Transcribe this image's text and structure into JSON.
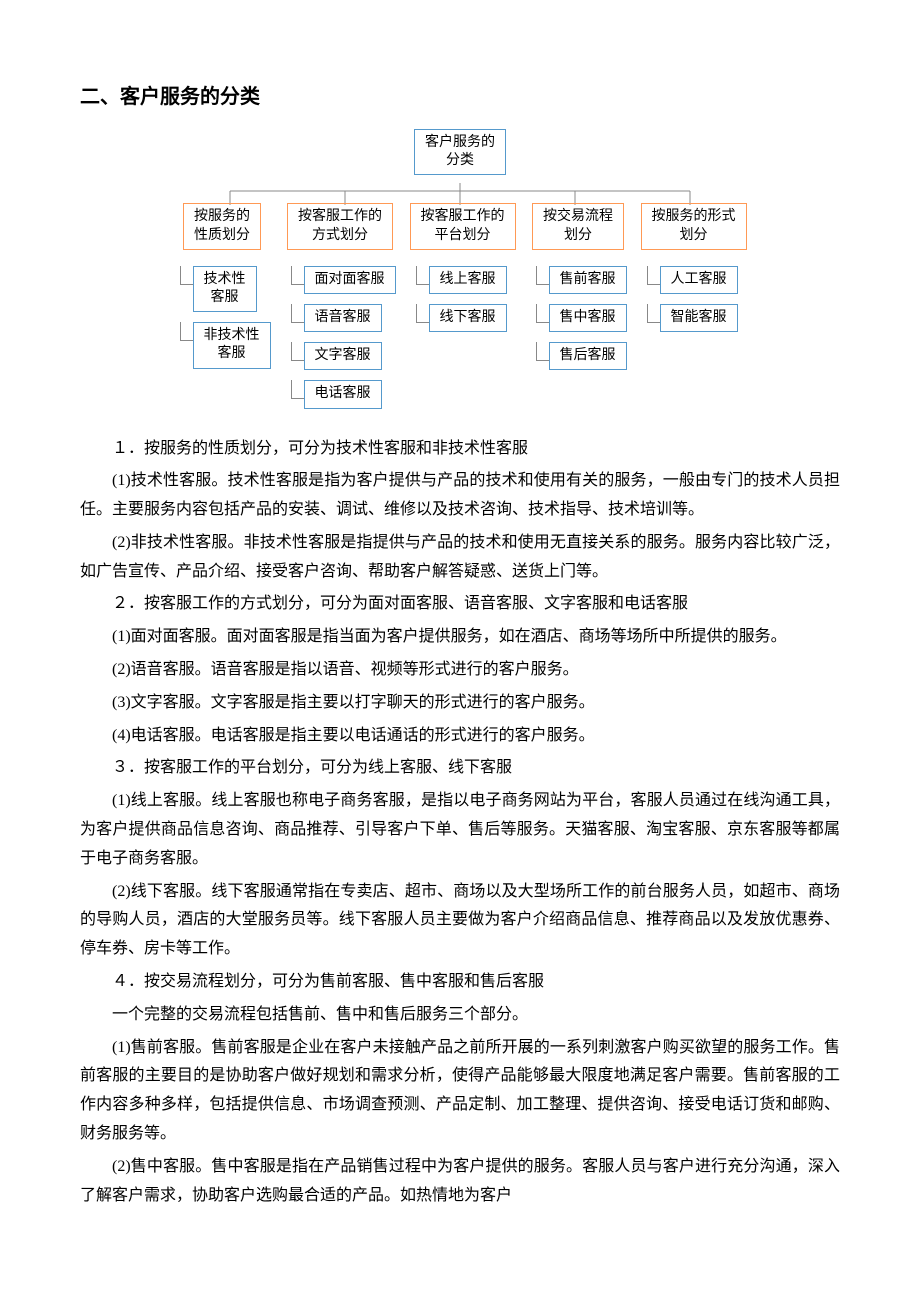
{
  "heading": "二、客户服务的分类",
  "diagram": {
    "root": {
      "line1": "客户服务的",
      "line2": "分类"
    },
    "cat_border": "#ff9955",
    "leaf_border": "#5599cc",
    "line_color": "#888888",
    "categories": [
      {
        "line1": "按服务的",
        "line2": "性质划分",
        "leaves": [
          {
            "line1": "技术性",
            "line2": "客服"
          },
          {
            "line1": "非技术性",
            "line2": "客服"
          }
        ]
      },
      {
        "line1": "按客服工作的",
        "line2": "方式划分",
        "leaves": [
          {
            "t": "面对面客服"
          },
          {
            "t": "语音客服"
          },
          {
            "t": "文字客服"
          },
          {
            "t": "电话客服"
          }
        ]
      },
      {
        "line1": "按客服工作的",
        "line2": "平台划分",
        "leaves": [
          {
            "t": "线上客服"
          },
          {
            "t": "线下客服"
          }
        ]
      },
      {
        "line1": "按交易流程",
        "line2": "划分",
        "leaves": [
          {
            "t": "售前客服"
          },
          {
            "t": "售中客服"
          },
          {
            "t": "售后客服"
          }
        ]
      },
      {
        "line1": "按服务的形式",
        "line2": "划分",
        "leaves": [
          {
            "t": "人工客服"
          },
          {
            "t": "智能客服"
          }
        ]
      }
    ]
  },
  "paragraphs": [
    "１．按服务的性质划分，可分为技术性客服和非技术性客服",
    "(1)技术性客服。技术性客服是指为客户提供与产品的技术和使用有关的服务，一般由专门的技术人员担任。主要服务内容包括产品的安装、调试、维修以及技术咨询、技术指导、技术培训等。",
    "(2)非技术性客服。非技术性客服是指提供与产品的技术和使用无直接关系的服务。服务内容比较广泛，如广告宣传、产品介绍、接受客户咨询、帮助客户解答疑惑、送货上门等。",
    "２．按客服工作的方式划分，可分为面对面客服、语音客服、文字客服和电话客服",
    "(1)面对面客服。面对面客服是指当面为客户提供服务，如在酒店、商场等场所中所提供的服务。",
    "(2)语音客服。语音客服是指以语音、视频等形式进行的客户服务。",
    "(3)文字客服。文字客服是指主要以打字聊天的形式进行的客户服务。",
    "(4)电话客服。电话客服是指主要以电话通话的形式进行的客户服务。",
    "３．按客服工作的平台划分，可分为线上客服、线下客服",
    "(1)线上客服。线上客服也称电子商务客服，是指以电子商务网站为平台，客服人员通过在线沟通工具，为客户提供商品信息咨询、商品推荐、引导客户下单、售后等服务。天猫客服、淘宝客服、京东客服等都属于电子商务客服。",
    "(2)线下客服。线下客服通常指在专卖店、超市、商场以及大型场所工作的前台服务人员，如超市、商场的导购人员，酒店的大堂服务员等。线下客服人员主要做为客户介绍商品信息、推荐商品以及发放优惠券、停车券、房卡等工作。",
    "４．按交易流程划分，可分为售前客服、售中客服和售后客服",
    "一个完整的交易流程包括售前、售中和售后服务三个部分。",
    "(1)售前客服。售前客服是企业在客户未接触产品之前所开展的一系列刺激客户购买欲望的服务工作。售前客服的主要目的是协助客户做好规划和需求分析，使得产品能够最大限度地满足客户需要。售前客服的工作内容多种多样，包括提供信息、市场调查预测、产品定制、加工整理、提供咨询、接受电话订货和邮购、财务服务等。",
    "(2)售中客服。售中客服是指在产品销售过程中为客户提供的服务。客服人员与客户进行充分沟通，深入了解客户需求，协助客户选购最合适的产品。如热情地为客户"
  ]
}
